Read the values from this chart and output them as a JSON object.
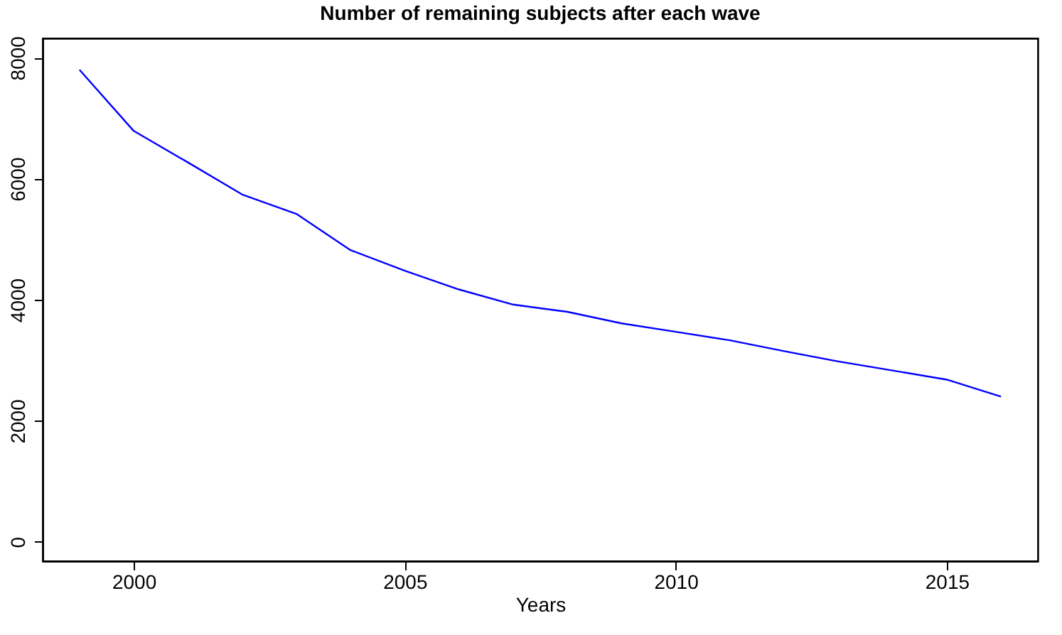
{
  "chart_data": {
    "type": "line",
    "title": "Number of remaining subjects after each wave",
    "xlabel": "Years",
    "x": [
      1999,
      2000,
      2001,
      2002,
      2003,
      2004,
      2005,
      2006,
      2007,
      2008,
      2009,
      2010,
      2011,
      2012,
      2013,
      2014,
      2015,
      2016
    ],
    "series": [
      {
        "color": "#0000ff",
        "values": [
          7800,
          6790,
          6270,
          5740,
          5420,
          4820,
          4480,
          4170,
          3920,
          3800,
          3610,
          3470,
          3330,
          3150,
          2980,
          2830,
          2680,
          2400
        ]
      }
    ],
    "xlim": [
      1998.32,
      2016.68
    ],
    "xticks": [
      2000,
      2005,
      2010,
      2015
    ],
    "ylim": [
      -320,
      8320
    ],
    "yticks": [
      0,
      2000,
      4000,
      6000,
      8000
    ],
    "grid": false,
    "marker": "none",
    "line_style": "solid"
  }
}
